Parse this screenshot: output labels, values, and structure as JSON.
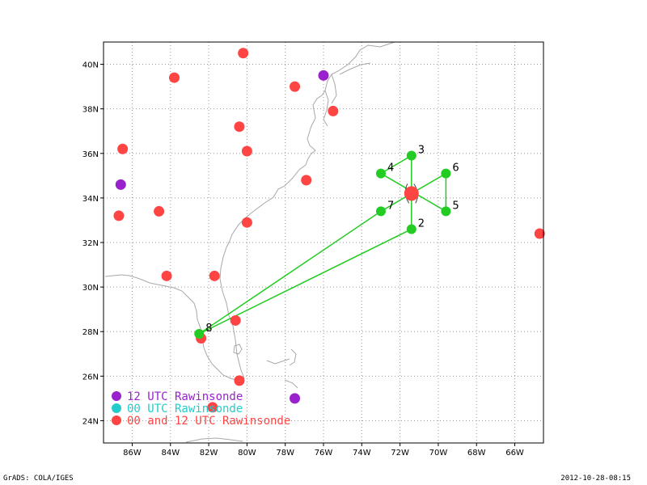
{
  "footer": {
    "left": "GrADS: COLA/IGES",
    "right": "2012-10-28-08:15"
  },
  "colors": {
    "frame": "#000000",
    "grid": "#999999",
    "coast": "#a8a8a8",
    "track": "#22cc22",
    "center": "#ff4444",
    "sonde_12utc": "#9922cc",
    "sonde_00utc": "#22cccc",
    "sonde_both": "#ff4444"
  },
  "chart_data": {
    "type": "scatter",
    "xlim": [
      -87.5,
      -64.5
    ],
    "ylim": [
      23,
      41
    ],
    "x_ticks": [
      {
        "value": -86,
        "label": "86W"
      },
      {
        "value": -84,
        "label": "84W"
      },
      {
        "value": -82,
        "label": "82W"
      },
      {
        "value": -80,
        "label": "80W"
      },
      {
        "value": -78,
        "label": "78W"
      },
      {
        "value": -76,
        "label": "76W"
      },
      {
        "value": -74,
        "label": "74W"
      },
      {
        "value": -72,
        "label": "72W"
      },
      {
        "value": -70,
        "label": "70W"
      },
      {
        "value": -68,
        "label": "68W"
      },
      {
        "value": -66,
        "label": "66W"
      }
    ],
    "y_ticks": [
      {
        "value": 24,
        "label": "24N"
      },
      {
        "value": 26,
        "label": "26N"
      },
      {
        "value": 28,
        "label": "28N"
      },
      {
        "value": 30,
        "label": "30N"
      },
      {
        "value": 32,
        "label": "32N"
      },
      {
        "value": 34,
        "label": "34N"
      },
      {
        "value": 36,
        "label": "36N"
      },
      {
        "value": 38,
        "label": "38N"
      },
      {
        "value": 40,
        "label": "40N"
      }
    ],
    "grid": true,
    "legend_position": "bottom-left",
    "legend": [
      {
        "label": "12 UTC Rawinsonde",
        "color": "#9922cc"
      },
      {
        "label": "00 UTC Rawinsonde",
        "color": "#22cccc"
      },
      {
        "label": "00 and 12 UTC Rawinsonde",
        "color": "#ff4444"
      }
    ],
    "storm_center": {
      "lon": -71.4,
      "lat": 34.2
    },
    "dropsondes": [
      {
        "label": "2",
        "lon": -71.4,
        "lat": 32.6
      },
      {
        "label": "3",
        "lon": -71.4,
        "lat": 35.9
      },
      {
        "label": "4",
        "lon": -73.0,
        "lat": 35.1
      },
      {
        "label": "5",
        "lon": -69.6,
        "lat": 33.4
      },
      {
        "label": "6",
        "lon": -69.6,
        "lat": 35.1
      },
      {
        "label": "7",
        "lon": -73.0,
        "lat": 33.4
      },
      {
        "label": "8",
        "lon": -82.5,
        "lat": 27.9
      }
    ],
    "flight_track": [
      [
        -82.5,
        27.9
      ],
      [
        -73.0,
        33.4
      ],
      [
        -69.6,
        35.1
      ],
      [
        -69.6,
        33.4
      ],
      [
        -73.0,
        35.1
      ],
      [
        -71.4,
        35.9
      ],
      [
        -71.4,
        32.6
      ],
      [
        -82.5,
        27.9
      ]
    ],
    "rawinsondes": [
      {
        "kind": "12utc",
        "lon": -76.0,
        "lat": 39.5
      },
      {
        "kind": "12utc",
        "lon": -86.6,
        "lat": 34.6
      },
      {
        "kind": "12utc",
        "lon": -77.5,
        "lat": 25.0
      },
      {
        "kind": "both",
        "lon": -80.2,
        "lat": 40.5
      },
      {
        "kind": "both",
        "lon": -83.8,
        "lat": 39.4
      },
      {
        "kind": "both",
        "lon": -77.5,
        "lat": 39.0
      },
      {
        "kind": "both",
        "lon": -75.5,
        "lat": 37.9
      },
      {
        "kind": "both",
        "lon": -80.4,
        "lat": 37.2
      },
      {
        "kind": "both",
        "lon": -80.0,
        "lat": 36.1
      },
      {
        "kind": "both",
        "lon": -86.5,
        "lat": 36.2
      },
      {
        "kind": "both",
        "lon": -76.9,
        "lat": 34.8
      },
      {
        "kind": "both",
        "lon": -84.6,
        "lat": 33.4
      },
      {
        "kind": "both",
        "lon": -86.7,
        "lat": 33.2
      },
      {
        "kind": "both",
        "lon": -80.0,
        "lat": 32.9
      },
      {
        "kind": "both",
        "lon": -84.2,
        "lat": 30.5
      },
      {
        "kind": "both",
        "lon": -81.7,
        "lat": 30.5
      },
      {
        "kind": "both",
        "lon": -80.6,
        "lat": 28.5
      },
      {
        "kind": "both",
        "lon": -82.4,
        "lat": 27.7
      },
      {
        "kind": "both",
        "lon": -80.4,
        "lat": 25.8
      },
      {
        "kind": "both",
        "lon": -81.8,
        "lat": 24.6
      },
      {
        "kind": "both",
        "lon": -64.7,
        "lat": 32.4
      }
    ]
  }
}
